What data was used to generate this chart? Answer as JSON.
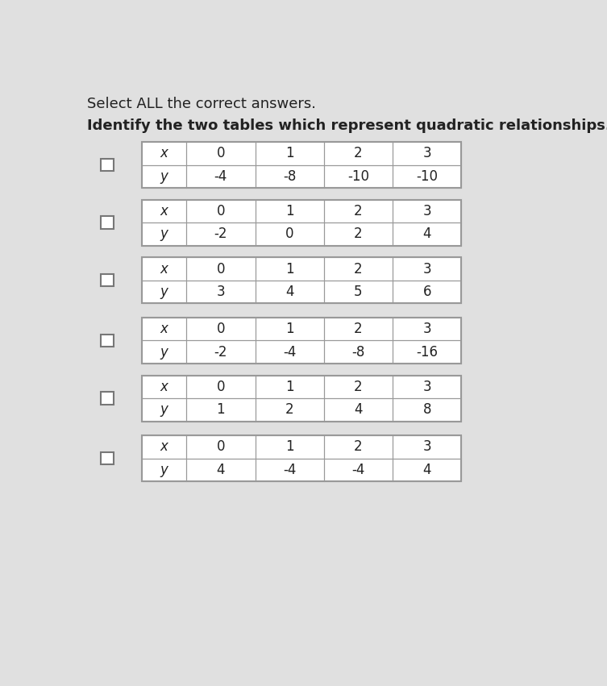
{
  "title_line1": "Select ALL the correct answers.",
  "title_line2": "Identify the two tables which represent quadratic relationships.",
  "tables": [
    {
      "x_vals": [
        "x",
        "0",
        "1",
        "2",
        "3"
      ],
      "y_vals": [
        "y",
        "-4",
        "-8",
        "-10",
        "-10"
      ]
    },
    {
      "x_vals": [
        "x",
        "0",
        "1",
        "2",
        "3"
      ],
      "y_vals": [
        "y",
        "-2",
        "0",
        "2",
        "4"
      ]
    },
    {
      "x_vals": [
        "x",
        "0",
        "1",
        "2",
        "3"
      ],
      "y_vals": [
        "y",
        "3",
        "4",
        "5",
        "6"
      ]
    },
    {
      "x_vals": [
        "x",
        "0",
        "1",
        "2",
        "3"
      ],
      "y_vals": [
        "y",
        "-2",
        "-4",
        "-8",
        "-16"
      ]
    },
    {
      "x_vals": [
        "x",
        "0",
        "1",
        "2",
        "3"
      ],
      "y_vals": [
        "y",
        "1",
        "2",
        "4",
        "8"
      ]
    },
    {
      "x_vals": [
        "x",
        "0",
        "1",
        "2",
        "3"
      ],
      "y_vals": [
        "y",
        "4",
        "-4",
        "-4",
        "4"
      ]
    }
  ],
  "bg_color": "#e0e0e0",
  "table_bg": "#ffffff",
  "border_color": "#999999",
  "text_color": "#222222",
  "checkbox_color": "#777777",
  "title1_fontsize": 13,
  "title2_fontsize": 13,
  "cell_text_fontsize": 12
}
